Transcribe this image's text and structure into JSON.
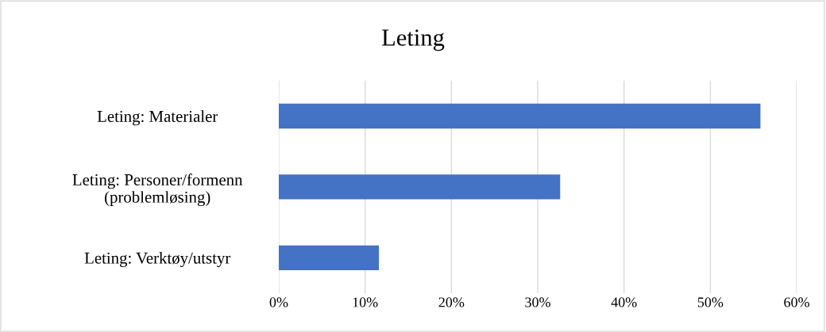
{
  "chart_data": {
    "type": "bar",
    "orientation": "horizontal",
    "title": "Leting",
    "categories": [
      "Leting: Materialer",
      "Leting: Personer/formenn\n(problemløsing)",
      "Leting: Verktøy/utstyr"
    ],
    "values": [
      55.8,
      32.6,
      11.6
    ],
    "color": "#4472c4",
    "xlim": [
      0,
      60
    ],
    "xticks": [
      {
        "value": 0,
        "label": "0%"
      },
      {
        "value": 10,
        "label": "10%"
      },
      {
        "value": 20,
        "label": "20%"
      },
      {
        "value": 30,
        "label": "30%"
      },
      {
        "value": 40,
        "label": "40%"
      },
      {
        "value": 50,
        "label": "50%"
      },
      {
        "value": 60,
        "label": "60%"
      }
    ],
    "grid": "x",
    "legend": false
  }
}
